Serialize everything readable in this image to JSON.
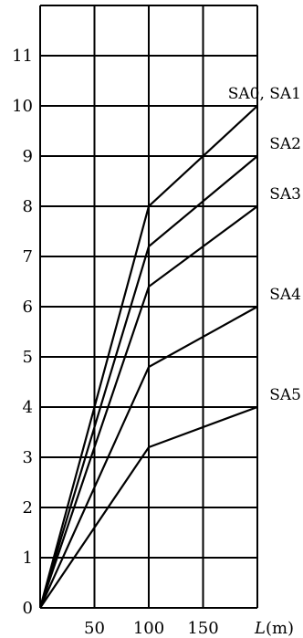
{
  "chart_data": {
    "type": "line",
    "xlabel_var": "L",
    "xlabel_unit": "(m)",
    "xlim": [
      0,
      200
    ],
    "ylim": [
      0,
      12
    ],
    "x_gridlines": [
      50,
      100,
      150,
      200
    ],
    "y_gridlines": [
      1,
      2,
      3,
      4,
      5,
      6,
      7,
      8,
      9,
      10,
      11,
      12
    ],
    "x_ticks": [
      50,
      100,
      150
    ],
    "y_ticks": [
      0,
      1,
      2,
      3,
      4,
      5,
      6,
      7,
      8,
      9,
      10,
      11
    ],
    "grid": true,
    "series": [
      {
        "name": "SA0, SA1",
        "x": [
          0,
          100,
          200
        ],
        "y": [
          0,
          8.0,
          10.0
        ]
      },
      {
        "name": "SA2",
        "x": [
          0,
          100,
          200
        ],
        "y": [
          0,
          7.2,
          9.0
        ]
      },
      {
        "name": "SA3",
        "x": [
          0,
          100,
          200
        ],
        "y": [
          0,
          6.4,
          8.0
        ]
      },
      {
        "name": "SA4",
        "x": [
          0,
          100,
          200
        ],
        "y": [
          0,
          4.8,
          6.0
        ]
      },
      {
        "name": "SA5",
        "x": [
          0,
          100,
          200
        ],
        "y": [
          0,
          3.2,
          4.0
        ]
      }
    ]
  }
}
